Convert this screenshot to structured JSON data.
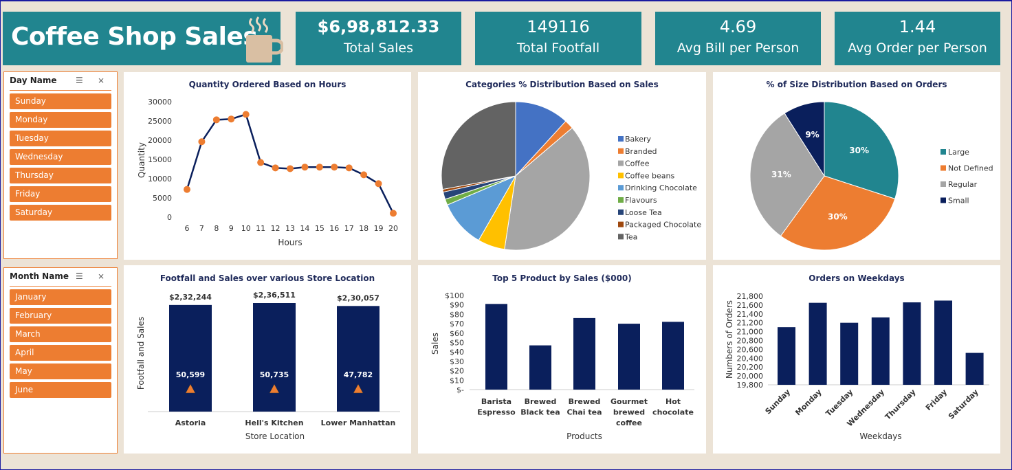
{
  "header": {
    "title": "Coffee Shop Sales",
    "kpis": [
      {
        "value": "$6,98,812.33",
        "label": "Total Sales",
        "bold": true
      },
      {
        "value": "149116",
        "label": "Total Footfall",
        "bold": false
      },
      {
        "value": "4.69",
        "label": "Avg Bill per Person",
        "bold": false
      },
      {
        "value": "1.44",
        "label": "Avg Order per Person",
        "bold": false
      }
    ]
  },
  "slicers": {
    "day": {
      "title": "Day Name",
      "items": [
        "Sunday",
        "Monday",
        "Tuesday",
        "Wednesday",
        "Thursday",
        "Friday",
        "Saturday"
      ]
    },
    "month": {
      "title": "Month Name",
      "items": [
        "January",
        "February",
        "March",
        "April",
        "May",
        "June"
      ]
    }
  },
  "colors": {
    "teal": "#21858f",
    "orange": "#ed7d31",
    "navy": "#0a1f5c",
    "background": "#ece3d6"
  },
  "chart_data": [
    {
      "type": "line",
      "title": "Quantity Ordered Based on Hours",
      "xlabel": "Hours",
      "ylabel": "Quantity",
      "x": [
        6,
        7,
        8,
        9,
        10,
        11,
        12,
        13,
        14,
        15,
        16,
        17,
        18,
        19,
        20
      ],
      "values": [
        7200,
        19600,
        25300,
        25500,
        26700,
        14200,
        12800,
        12600,
        13000,
        13000,
        13000,
        12800,
        11000,
        8700,
        1000
      ],
      "ylim": [
        0,
        30000
      ],
      "yticks": [
        "30000",
        "25000",
        "20000",
        "15000",
        "10000",
        "5000",
        "0"
      ]
    },
    {
      "type": "pie",
      "title": "Categories % Distribution Based on Sales",
      "categories": [
        "Bakery",
        "Branded",
        "Coffee",
        "Coffee beans",
        "Drinking Chocolate",
        "Flavours",
        "Loose Tea",
        "Packaged Chocolate",
        "Tea"
      ],
      "values": [
        11.8,
        2.0,
        38.6,
        5.9,
        10.3,
        1.3,
        1.6,
        0.6,
        27.9
      ],
      "colors": [
        "#4472c4",
        "#ed7d31",
        "#a5a5a5",
        "#ffc000",
        "#5b9bd5",
        "#70ad47",
        "#264478",
        "#9e480e",
        "#636363"
      ],
      "legend": "right"
    },
    {
      "type": "pie",
      "title": "% of Size Distribution Based on Orders",
      "categories": [
        "Large",
        "Not Defined",
        "Regular",
        "Small"
      ],
      "values": [
        30,
        30,
        31,
        9
      ],
      "labels": [
        "30%",
        "30%",
        "31%",
        "9%"
      ],
      "colors": [
        "#21858f",
        "#ed7d31",
        "#a5a5a5",
        "#0a1f5c"
      ],
      "legend": "right"
    },
    {
      "type": "bar",
      "title": "Footfall and Sales over various Store Location",
      "xlabel": "Store Location",
      "ylabel": "Footfall and Sales",
      "categories": [
        "Astoria",
        "Hell's Kitchen",
        "Lower Manhattan"
      ],
      "series": [
        {
          "values": [
            232244,
            236511,
            230057
          ],
          "labels": [
            "$2,32,244",
            "$2,36,511",
            "$2,30,057"
          ]
        },
        {
          "values": [
            50599,
            50735,
            47782
          ],
          "labels": [
            "50,599",
            "50,735",
            "47,782"
          ]
        }
      ]
    },
    {
      "type": "bar",
      "title": "Top 5 Product by Sales ($000)",
      "xlabel": "Products",
      "ylabel": "Sales",
      "categories": [
        [
          "Barista",
          "Espresso"
        ],
        [
          "Brewed",
          "Black tea"
        ],
        [
          "Brewed",
          "Chai tea"
        ],
        [
          "Gourmet",
          "brewed",
          "coffee"
        ],
        [
          "Hot",
          "chocolate"
        ]
      ],
      "values": [
        91,
        47,
        76,
        70,
        72
      ],
      "ylim": [
        0,
        100
      ],
      "yticks": [
        "$100",
        "$90",
        "$80",
        "$70",
        "$60",
        "$50",
        "$40",
        "$30",
        "$20",
        "$10",
        "$-"
      ]
    },
    {
      "type": "bar",
      "title": "Orders on Weekdays",
      "xlabel": "Weekdays",
      "ylabel": "Numbers of Orders",
      "categories": [
        "Sunday",
        "Monday",
        "Tuesday",
        "Wednesday",
        "Thursday",
        "Friday",
        "Saturday"
      ],
      "values": [
        21100,
        21650,
        21200,
        21320,
        21660,
        21700,
        20520
      ],
      "ylim": [
        19800,
        21800
      ],
      "yticks": [
        "21,800",
        "21,600",
        "21,400",
        "21,200",
        "21,000",
        "20,800",
        "20,600",
        "20,400",
        "20,200",
        "20,000",
        "19,800"
      ]
    }
  ]
}
